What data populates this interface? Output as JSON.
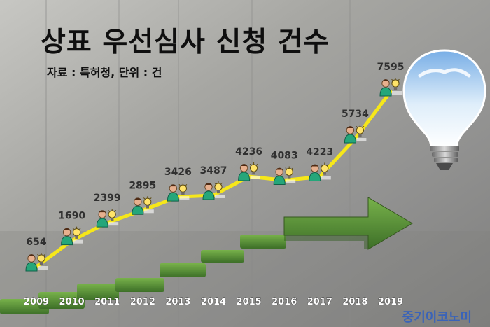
{
  "header": {
    "title": "상표 우선심사 신청 건수",
    "source": "자료 : 특허청, 단위 : 건"
  },
  "brand": "중기이코노미",
  "colors": {
    "line": "#f6e719",
    "title": "#0f0f0f",
    "brand": "#3a63b8",
    "label": "#303030"
  },
  "chart_data": {
    "type": "line",
    "categories": [
      "2009",
      "2010",
      "2011",
      "2012",
      "2013",
      "2014",
      "2015",
      "2016",
      "2017",
      "2018",
      "2019"
    ],
    "values": [
      654,
      1690,
      2399,
      2895,
      3426,
      3487,
      4236,
      4083,
      4223,
      5734,
      7595
    ],
    "title": "상표 우선심사 신청 건수",
    "subtitle": "자료 : 특허청, 단위 : 건",
    "xlabel": "",
    "ylabel": "",
    "unit": "건",
    "grid": false,
    "legend": "none",
    "ylim": [
      0,
      8000
    ]
  },
  "icons": {
    "data_point_icon": "person-with-lightbulb-icon",
    "decor_right": "lightbulb-icon",
    "decor_bottom": "grass-arrow-icon"
  }
}
